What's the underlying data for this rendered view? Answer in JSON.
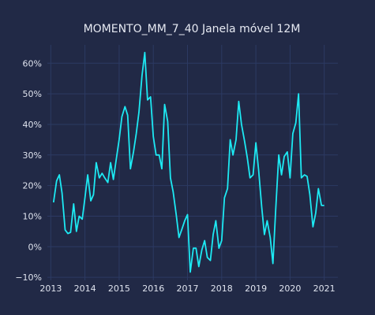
{
  "chart_data": {
    "type": "line",
    "title": "MOMENTO_MM_7_40 Janela móvel 12M",
    "xlabel": "",
    "ylabel": "",
    "grid": true,
    "xlim": [
      2012.9,
      2021.4
    ],
    "ylim": [
      -11,
      66
    ],
    "x_ticks": [
      2013,
      2014,
      2015,
      2016,
      2017,
      2018,
      2019,
      2020,
      2021
    ],
    "x_tick_labels": [
      "2013",
      "2014",
      "2015",
      "2016",
      "2017",
      "2018",
      "2019",
      "2020",
      "2021"
    ],
    "y_ticks": [
      -10,
      0,
      10,
      20,
      30,
      40,
      50,
      60
    ],
    "y_tick_labels": [
      "−10%",
      "0%",
      "10%",
      "20%",
      "30%",
      "40%",
      "50%",
      "60%"
    ],
    "line_color": "#1de9f3",
    "series": [
      {
        "x": [
          2013.08,
          2013.17,
          2013.25,
          2013.33,
          2013.42,
          2013.5,
          2013.58,
          2013.67,
          2013.75,
          2013.83,
          2013.92,
          2014.0,
          2014.08,
          2014.17,
          2014.25,
          2014.33,
          2014.42,
          2014.5,
          2014.58,
          2014.67,
          2014.75,
          2014.83,
          2014.92,
          2015.0,
          2015.08,
          2015.17,
          2015.25,
          2015.33,
          2015.42,
          2015.5,
          2015.58,
          2015.67,
          2015.75,
          2015.83,
          2015.92,
          2016.0,
          2016.08,
          2016.17,
          2016.25,
          2016.33,
          2016.42,
          2016.5,
          2016.58,
          2016.67,
          2016.75,
          2016.83,
          2016.92,
          2017.0,
          2017.08,
          2017.17,
          2017.25,
          2017.33,
          2017.42,
          2017.5,
          2017.58,
          2017.67,
          2017.75,
          2017.83,
          2017.92,
          2018.0,
          2018.08,
          2018.17,
          2018.25,
          2018.33,
          2018.42,
          2018.5,
          2018.58,
          2018.67,
          2018.75,
          2018.83,
          2018.92,
          2019.0,
          2019.08,
          2019.17,
          2019.25,
          2019.33,
          2019.42,
          2019.5,
          2019.58,
          2019.67,
          2019.75,
          2019.83,
          2019.92,
          2020.0,
          2020.08,
          2020.17,
          2020.25,
          2020.33,
          2020.42,
          2020.5,
          2020.58,
          2020.67,
          2020.75,
          2020.83,
          2020.92,
          2021.0
        ],
        "y": [
          14.5,
          21.5,
          23.5,
          17.5,
          5.5,
          4.3,
          4.7,
          14,
          5,
          10,
          9,
          16,
          23.5,
          15,
          17,
          27.5,
          22.5,
          24,
          22.5,
          21,
          27.5,
          22,
          29,
          35,
          42.5,
          45.8,
          43,
          25.5,
          31,
          37,
          44,
          56,
          63.5,
          48,
          49,
          36,
          30,
          30,
          25.5,
          46.5,
          41,
          22.5,
          18,
          10.5,
          3,
          5.5,
          8.5,
          10.5,
          -8.3,
          -0.5,
          -0.5,
          -6.5,
          -1,
          2,
          -3.5,
          -4.5,
          4,
          8.5,
          -0.5,
          2,
          16,
          19,
          35,
          30,
          35,
          47.5,
          40,
          34.5,
          29,
          22.5,
          23.5,
          34,
          25,
          13,
          4,
          8.5,
          3,
          -5.5,
          12,
          30,
          23.5,
          29.5,
          31,
          22.5,
          37,
          40.5,
          50,
          22.5,
          23.5,
          23,
          17,
          6.5,
          11,
          19,
          13.5,
          13.5
        ]
      }
    ]
  }
}
